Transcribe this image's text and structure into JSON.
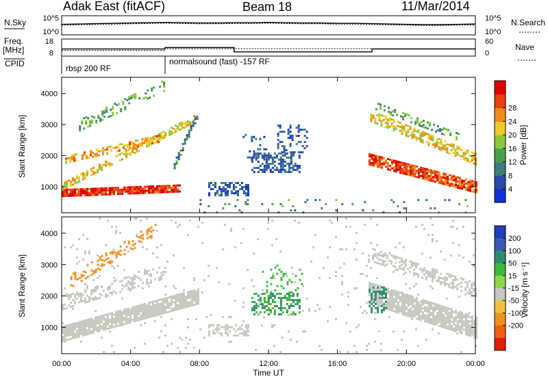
{
  "header": {
    "station": "Adak East (fitACF)",
    "beam": "Beam 18",
    "date": "11/Mar/2014"
  },
  "panel_labels": {
    "nsky": "N.Sky",
    "nsearch": "N.Search",
    "freq_line1": "Freq.",
    "freq_line2": "[MHz]",
    "nave": "Nave",
    "cpid": "CPID"
  },
  "nsky_ticks": [
    "10^5",
    "10^0"
  ],
  "nsearch_ticks": [
    "10^5",
    "10^0"
  ],
  "freq_ticks": [
    "18",
    "8"
  ],
  "nave_ticks": [
    "60",
    "0"
  ],
  "cpid_segments": [
    {
      "start_hour": 0,
      "label": "rbsp 200 RF"
    },
    {
      "start_hour": 6,
      "label": "normalsound (fast) -157 RF"
    }
  ],
  "x_ticks": [
    "00:00",
    "04:00",
    "08:00",
    "12:00",
    "16:00",
    "20:00",
    "00:00"
  ],
  "x_label": "Time UT",
  "range_ticks": [
    "1000",
    "2000",
    "3000",
    "4000"
  ],
  "range_label": "Slant Range [km]",
  "colorbars": {
    "power": {
      "title": "Power [dB]",
      "ticks": [
        "4",
        "8",
        "12",
        "16",
        "20",
        "24",
        "28"
      ],
      "colors": [
        "#1030d8",
        "#2a4aa8",
        "#3c7c7c",
        "#4aa04a",
        "#8cc83a",
        "#f0c828",
        "#f08c18",
        "#e84010",
        "#e00000"
      ]
    },
    "velocity": {
      "title": "Velocity [m s⁻¹]",
      "ticks": [
        "200",
        "100",
        "50",
        "15",
        "-15",
        "-50",
        "-100",
        "-200"
      ],
      "colors": [
        "#1f3fbf",
        "#3a5ab0",
        "#2e8c6e",
        "#3cb83c",
        "#8cd84a",
        "#c8c8c0",
        "#f0c040",
        "#f09020",
        "#f06010",
        "#e02000"
      ]
    }
  },
  "chart_data": [
    {
      "type": "line",
      "name": "N.Sky / N.Search",
      "x_hours": [
        0,
        1,
        2,
        3,
        4,
        5,
        6,
        7,
        8,
        9,
        10,
        11,
        12,
        13,
        14,
        15,
        16,
        17,
        18,
        19,
        20,
        21,
        22,
        23,
        24
      ],
      "nsky_log10": [
        2.8,
        2.9,
        3.0,
        3.1,
        3.2,
        3.3,
        3.4,
        3.3,
        3.2,
        3.2,
        3.3,
        3.3,
        3.4,
        3.3,
        3.2,
        3.2,
        3.1,
        3.1,
        3.0,
        2.9,
        2.8,
        2.7,
        2.7,
        2.8,
        2.9
      ],
      "ylim_log10": [
        0,
        5
      ]
    },
    {
      "type": "line",
      "name": "Freq / Nave",
      "freq_steps_mhz": [
        {
          "start": 0,
          "end": 6,
          "value": 12
        },
        {
          "start": 6,
          "end": 10,
          "value": 13
        },
        {
          "start": 10,
          "end": 18,
          "value": 10
        },
        {
          "start": 18,
          "end": 24,
          "value": 12
        }
      ],
      "freq_ylim": [
        8,
        18
      ],
      "nave_steps": [
        {
          "start": 0,
          "end": 6,
          "value": 18
        },
        {
          "start": 6,
          "end": 24,
          "value": 25
        }
      ],
      "nave_ylim": [
        0,
        60
      ]
    },
    {
      "type": "heatmap",
      "name": "power",
      "x_range_hours": [
        0,
        24
      ],
      "y_range_km": [
        180,
        4500
      ],
      "z_unit": "dB",
      "features": [
        {
          "kind": "band",
          "t0": 0.0,
          "t1": 6.9,
          "r_start": 800,
          "r_end": 950,
          "thickness": 250,
          "value": 26,
          "density": 0.9
        },
        {
          "kind": "band",
          "t0": 0.0,
          "t1": 7.7,
          "r_start": 1000,
          "r_end": 3200,
          "thickness": 250,
          "value": 18,
          "density": 0.55
        },
        {
          "kind": "band",
          "t0": 0.2,
          "t1": 5.8,
          "r_start": 1900,
          "r_end": 2600,
          "thickness": 200,
          "value": 20,
          "density": 0.55
        },
        {
          "kind": "band",
          "t0": 1.0,
          "t1": 6.0,
          "r_start": 3000,
          "r_end": 4300,
          "thickness": 350,
          "value": 12,
          "density": 0.3
        },
        {
          "kind": "band",
          "t0": 6.5,
          "t1": 7.9,
          "r_start": 1700,
          "r_end": 3400,
          "thickness": 250,
          "value": 8,
          "density": 0.55
        },
        {
          "kind": "blob",
          "t0": 8.5,
          "t1": 10.8,
          "r0": 700,
          "r1": 1150,
          "value": 6,
          "density": 0.55
        },
        {
          "kind": "blob",
          "t0": 11.0,
          "t1": 13.8,
          "r0": 1450,
          "r1": 2100,
          "value": 6,
          "density": 0.55
        },
        {
          "kind": "blob",
          "t0": 12.5,
          "t1": 14.2,
          "r0": 2100,
          "r1": 3000,
          "value": 5,
          "density": 0.25
        },
        {
          "kind": "blob",
          "t0": 10.5,
          "t1": 12.0,
          "r0": 1900,
          "r1": 2700,
          "value": 5,
          "density": 0.2
        },
        {
          "kind": "band",
          "t0": 17.8,
          "t1": 24.0,
          "r_start": 1900,
          "r_end": 1000,
          "thickness": 350,
          "value": 24,
          "density": 0.85
        },
        {
          "kind": "band",
          "t0": 17.9,
          "t1": 24.0,
          "r_start": 3300,
          "r_end": 1900,
          "thickness": 350,
          "value": 18,
          "density": 0.6
        },
        {
          "kind": "band",
          "t0": 18.2,
          "t1": 23.0,
          "r_start": 3600,
          "r_end": 2600,
          "thickness": 250,
          "value": 12,
          "density": 0.3
        },
        {
          "kind": "noise",
          "t0": 8.0,
          "t1": 24.0,
          "r0": 180,
          "r1": 600,
          "value": 10,
          "density": 0.05
        }
      ]
    },
    {
      "type": "heatmap",
      "name": "velocity",
      "x_range_hours": [
        0,
        24
      ],
      "y_range_km": [
        180,
        4500
      ],
      "z_unit": "m/s",
      "features": [
        {
          "kind": "band",
          "t0": 0.0,
          "t1": 7.9,
          "r_start": 800,
          "r_end": 2000,
          "thickness": 500,
          "value": 0,
          "density": 0.9
        },
        {
          "kind": "band",
          "t0": 0.0,
          "t1": 6.0,
          "r_start": 1800,
          "r_end": 2800,
          "thickness": 400,
          "value": 0,
          "density": 0.35
        },
        {
          "kind": "band",
          "t0": 0.5,
          "t1": 5.5,
          "r_start": 2500,
          "r_end": 4200,
          "thickness": 400,
          "value": -60,
          "density": 0.25
        },
        {
          "kind": "blob",
          "t0": 8.5,
          "t1": 10.8,
          "r0": 750,
          "r1": 1100,
          "value": 5,
          "density": 0.45
        },
        {
          "kind": "blob",
          "t0": 11.0,
          "t1": 13.8,
          "r0": 1400,
          "r1": 2100,
          "value": 30,
          "density": 0.45
        },
        {
          "kind": "blob",
          "t0": 11.5,
          "t1": 14.0,
          "r0": 2100,
          "r1": 3000,
          "value": 20,
          "density": 0.2
        },
        {
          "kind": "band",
          "t0": 17.8,
          "t1": 24.0,
          "r_start": 2100,
          "r_end": 1000,
          "thickness": 700,
          "value": 0,
          "density": 0.85
        },
        {
          "kind": "band",
          "t0": 18.0,
          "t1": 24.0,
          "r_start": 3300,
          "r_end": 2200,
          "thickness": 450,
          "value": 0,
          "density": 0.5
        },
        {
          "kind": "blob",
          "t0": 17.8,
          "t1": 18.8,
          "r0": 1500,
          "r1": 2300,
          "value": 40,
          "density": 0.5
        },
        {
          "kind": "noise",
          "t0": 0.0,
          "t1": 24.0,
          "r0": 180,
          "r1": 4500,
          "value": 0,
          "density": 0.025
        }
      ]
    }
  ]
}
